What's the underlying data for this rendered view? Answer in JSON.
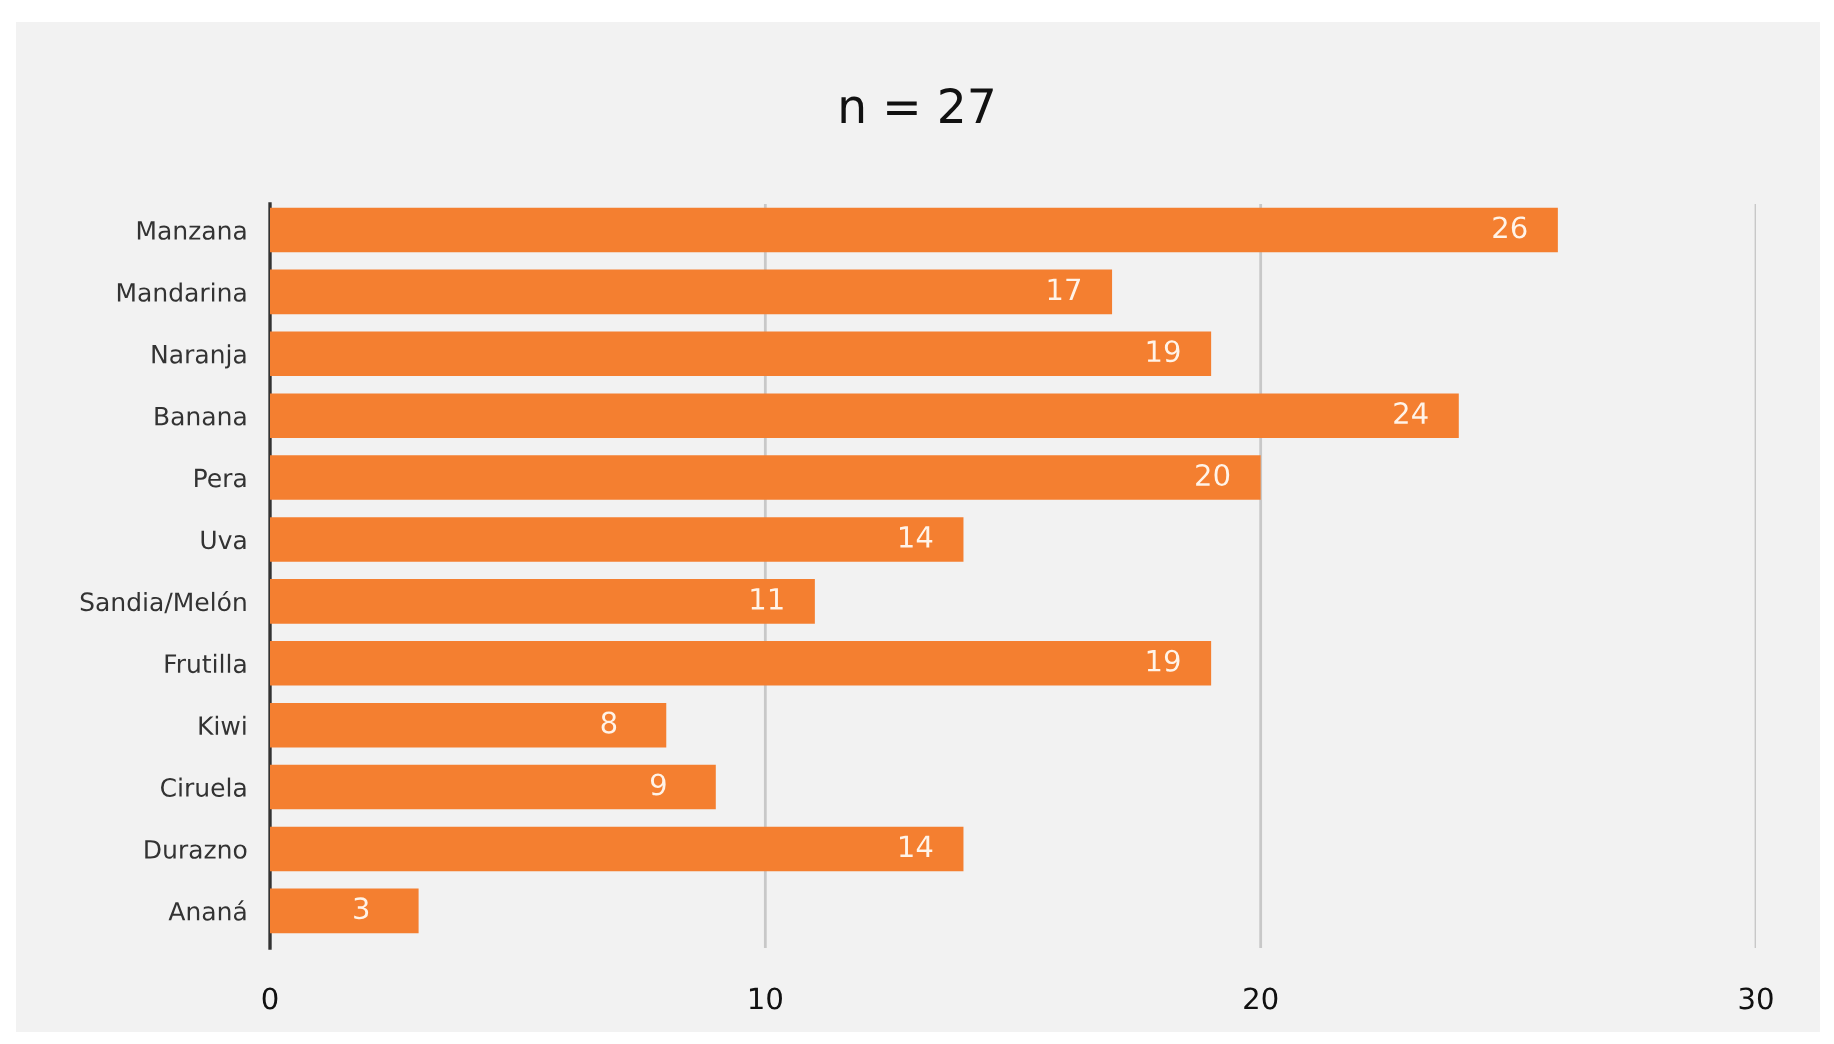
{
  "chart_data": {
    "type": "bar",
    "orientation": "horizontal",
    "title": "n = 27",
    "categories": [
      "Manzana",
      "Mandarina",
      "Naranja",
      "Banana",
      "Pera",
      "Uva",
      "Sandia/Melón",
      "Frutilla",
      "Kiwi",
      "Ciruela",
      "Durazno",
      "Ananá"
    ],
    "values": [
      26,
      17,
      19,
      24,
      20,
      14,
      11,
      19,
      8,
      9,
      14,
      3
    ],
    "color": "#f47f30",
    "xlim": [
      0,
      30
    ],
    "xticks": [
      0,
      10,
      20,
      30
    ],
    "grid": "x",
    "data_labels": true
  }
}
